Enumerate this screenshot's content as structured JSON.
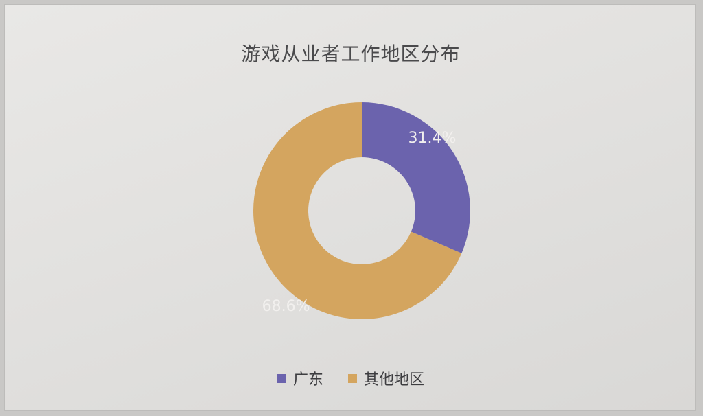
{
  "chart_data": {
    "type": "pie",
    "title": "游戏从业者工作地区分布",
    "categories": [
      "广东",
      "其他地区"
    ],
    "values": [
      31.4,
      68.6
    ],
    "data_labels": [
      "31.4%",
      "68.6%"
    ],
    "colors": [
      "#6b63ad",
      "#d4a55f"
    ],
    "donut": true,
    "legend_position": "bottom"
  }
}
